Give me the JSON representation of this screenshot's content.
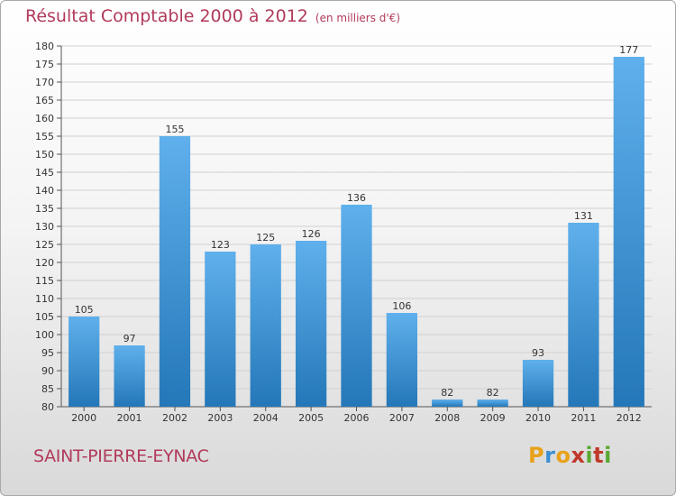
{
  "header": {
    "title": "Résultat Comptable 2000 à 2012",
    "subtitle": "(en milliers d'€)"
  },
  "footer": {
    "commune": "SAINT-PIERRE-EYNAC",
    "logo_letters": [
      "P",
      "r",
      "o",
      "x",
      "i",
      "t",
      "i"
    ]
  },
  "colors": {
    "title": "#b13a5a",
    "bar_top": "#5fb0ec",
    "bar_bottom": "#2477b8",
    "grid": "#d0d0d0",
    "logo": [
      "#e8a21a",
      "#3b8fd4",
      "#e8a21a",
      "#c0392b",
      "#5aa832",
      "#c0392b",
      "#5aa832"
    ]
  },
  "chart_data": {
    "type": "bar",
    "title": "Résultat Comptable 2000 à 2012",
    "subtitle": "(en milliers d'€)",
    "xlabel": "",
    "ylabel": "",
    "categories": [
      "2000",
      "2001",
      "2002",
      "2003",
      "2004",
      "2005",
      "2006",
      "2007",
      "2008",
      "2009",
      "2010",
      "2011",
      "2012"
    ],
    "values": [
      105,
      97,
      155,
      123,
      125,
      126,
      136,
      106,
      82,
      82,
      93,
      131,
      177
    ],
    "ylim": [
      80,
      180
    ],
    "yticks": [
      80,
      85,
      90,
      95,
      100,
      105,
      110,
      115,
      120,
      125,
      130,
      135,
      140,
      145,
      150,
      155,
      160,
      165,
      170,
      175,
      180
    ],
    "grid": true
  }
}
